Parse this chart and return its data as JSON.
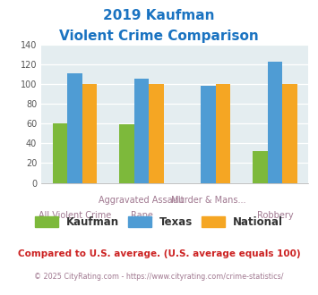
{
  "title_line1": "2019 Kaufman",
  "title_line2": "Violent Crime Comparison",
  "kaufman": [
    60,
    59,
    0,
    32
  ],
  "texas": [
    111,
    105,
    98,
    122
  ],
  "national": [
    100,
    100,
    100,
    100
  ],
  "bar_color_kaufman": "#7db93b",
  "bar_color_texas": "#4f9cd4",
  "bar_color_national": "#f5a623",
  "ylim": [
    0,
    140
  ],
  "yticks": [
    0,
    20,
    40,
    60,
    80,
    100,
    120,
    140
  ],
  "bg_color": "#e4edf0",
  "title_color": "#1a73c1",
  "xlabel_color": "#a07890",
  "legend_label_kaufman": "Kaufman",
  "legend_label_texas": "Texas",
  "legend_label_national": "National",
  "footnote1": "Compared to U.S. average. (U.S. average equals 100)",
  "footnote2": "© 2025 CityRating.com - https://www.cityrating.com/crime-statistics/",
  "footnote1_color": "#cc2222",
  "footnote2_color": "#a07890",
  "bar_width": 0.22,
  "group_positions": [
    0,
    1,
    2,
    3
  ]
}
